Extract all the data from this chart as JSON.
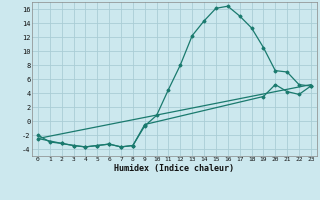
{
  "title": "",
  "xlabel": "Humidex (Indice chaleur)",
  "ylabel": "",
  "bg_color": "#cce8ee",
  "grid_color": "#aacdd5",
  "line_color": "#1a7a6e",
  "xlim": [
    -0.5,
    23.5
  ],
  "ylim": [
    -5.0,
    17.0
  ],
  "xticks": [
    0,
    1,
    2,
    3,
    4,
    5,
    6,
    7,
    8,
    9,
    10,
    11,
    12,
    13,
    14,
    15,
    16,
    17,
    18,
    19,
    20,
    21,
    22,
    23
  ],
  "yticks": [
    -4,
    -2,
    0,
    2,
    4,
    6,
    8,
    10,
    12,
    14,
    16
  ],
  "curve1_x": [
    0,
    1,
    2,
    3,
    4,
    5,
    6,
    7,
    8,
    9,
    10,
    11,
    12,
    13,
    14,
    15,
    16,
    17,
    18,
    19,
    20,
    21,
    22,
    23
  ],
  "curve1_y": [
    -2.0,
    -3.0,
    -3.2,
    -3.5,
    -3.7,
    -3.5,
    -3.3,
    -3.7,
    -3.5,
    -0.7,
    0.8,
    4.5,
    8.0,
    12.2,
    14.3,
    16.1,
    16.4,
    15.0,
    13.3,
    10.5,
    7.2,
    7.0,
    5.2,
    5.0
  ],
  "curve2_x": [
    0,
    23
  ],
  "curve2_y": [
    -2.5,
    5.2
  ],
  "curve3_x": [
    0,
    2,
    3,
    4,
    5,
    6,
    7,
    8,
    9,
    19,
    20,
    21,
    22,
    23
  ],
  "curve3_y": [
    -2.5,
    -3.2,
    -3.5,
    -3.7,
    -3.5,
    -3.3,
    -3.7,
    -3.5,
    -0.5,
    3.5,
    5.2,
    4.2,
    3.8,
    5.0
  ]
}
